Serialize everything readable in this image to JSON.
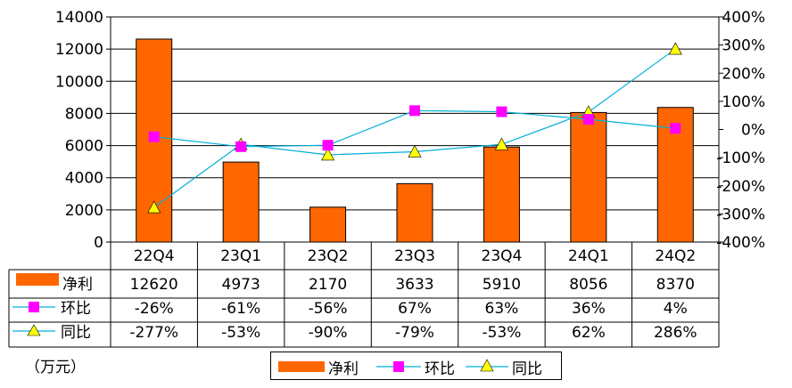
{
  "chart_data": {
    "type": "bar",
    "title": "",
    "unit_label": "（万元）",
    "categories": [
      "22Q4",
      "23Q1",
      "23Q2",
      "23Q3",
      "23Q4",
      "24Q1",
      "24Q2"
    ],
    "left_axis": {
      "min": 0,
      "max": 14000,
      "step": 2000,
      "ticks": [
        "0",
        "2000",
        "4000",
        "6000",
        "8000",
        "10000",
        "12000",
        "14000"
      ]
    },
    "right_axis": {
      "min": -400,
      "max": 400,
      "step": 100,
      "ticks": [
        "-400%",
        "-300%",
        "-200%",
        "-100%",
        "0%",
        "100%",
        "200%",
        "300%",
        "400%"
      ]
    },
    "series": [
      {
        "name": "净利",
        "type": "bar",
        "axis": "left",
        "color": "#ff6600",
        "values": [
          12620,
          4973,
          2170,
          3633,
          5910,
          8056,
          8370
        ],
        "labels": [
          "12620",
          "4973",
          "2170",
          "3633",
          "5910",
          "8056",
          "8370"
        ]
      },
      {
        "name": "环比",
        "type": "line",
        "axis": "right",
        "color": "#00b0d8",
        "marker": "square",
        "marker_color": "#ff00ff",
        "values": [
          -26,
          -61,
          -56,
          67,
          63,
          36,
          4
        ],
        "labels": [
          "-26%",
          "-61%",
          "-56%",
          "67%",
          "63%",
          "36%",
          "4%"
        ]
      },
      {
        "name": "同比",
        "type": "line",
        "axis": "right",
        "color": "#00b0d8",
        "marker": "triangle",
        "marker_color": "#ffff00",
        "values": [
          -277,
          -53,
          -90,
          -79,
          -53,
          62,
          286
        ],
        "labels": [
          "-277%",
          "-53%",
          "-90%",
          "-79%",
          "-53%",
          "62%",
          "286%"
        ]
      }
    ],
    "legend": [
      "净利",
      "环比",
      "同比"
    ],
    "legend_position": "bottom",
    "grid": true
  }
}
